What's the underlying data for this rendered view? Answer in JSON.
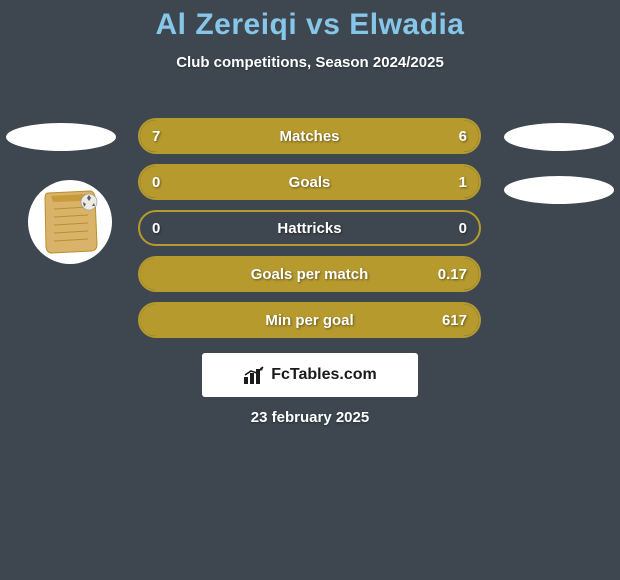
{
  "background_color": "#3e4750",
  "title": {
    "text": "Al Zereiqi vs Elwadia",
    "color": "#86c6e8",
    "fontsize": 30
  },
  "subtitle": {
    "text": "Club competitions, Season 2024/2025",
    "color": "#ffffff",
    "fontsize": 15
  },
  "bar_track_width": 343,
  "bar_border_color": "#b69a2e",
  "bar_fill_color": "#b69a2e",
  "rows": [
    {
      "label": "Matches",
      "left": "7",
      "right": "6",
      "left_width": 184,
      "right_width": 159
    },
    {
      "label": "Goals",
      "left": "0",
      "right": "1",
      "left_width": 62,
      "right_width": 281
    },
    {
      "label": "Hattricks",
      "left": "0",
      "right": "0",
      "left_width": 0,
      "right_width": 0
    },
    {
      "label": "Goals per match",
      "left": "",
      "right": "0.17",
      "left_width": 0,
      "right_width": 343
    },
    {
      "label": "Min per goal",
      "left": "",
      "right": "617",
      "left_width": 0,
      "right_width": 343
    }
  ],
  "branding": {
    "text": "FcTables.com",
    "bg": "#ffffff",
    "text_color": "#1a1a1a"
  },
  "date": "23 february 2025",
  "avatar": {
    "fill": "#d4a84b",
    "border": "#c4942e"
  },
  "side_ovals": {
    "bg": "#ffffff"
  }
}
